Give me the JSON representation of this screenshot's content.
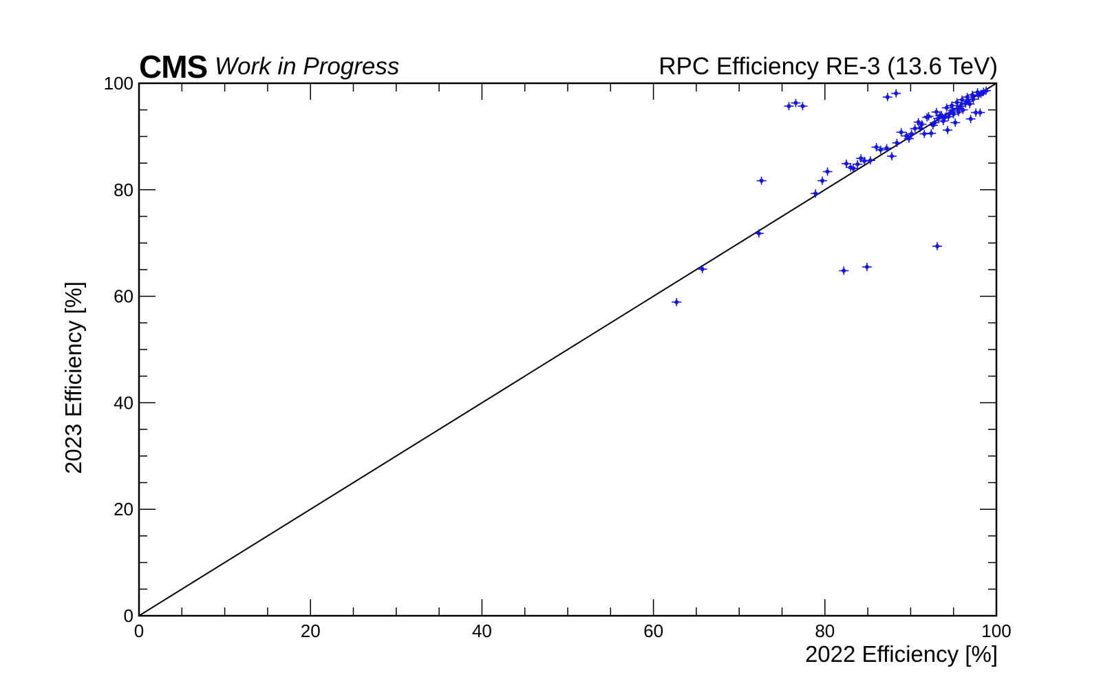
{
  "header": {
    "experiment": "CMS",
    "status": "Work in Progress",
    "title": "RPC Efficiency RE-3 (13.6 TeV)"
  },
  "chart_data": {
    "type": "scatter",
    "title": "RPC Efficiency RE-3 (13.6 TeV)",
    "xlabel": "2022 Efficiency [%]",
    "ylabel": "2023 Efficiency [%]",
    "xlim": [
      0,
      100
    ],
    "ylim": [
      0,
      100
    ],
    "x_ticks": [
      0,
      20,
      40,
      60,
      80,
      100
    ],
    "y_ticks": [
      0,
      20,
      40,
      60,
      80,
      100
    ],
    "grid": false,
    "reference_line": "y = x",
    "marker_color": "#1414e6",
    "error_bars": true,
    "points": [
      [
        62.7,
        58.9
      ],
      [
        65.7,
        65.1
      ],
      [
        72.3,
        71.8
      ],
      [
        72.6,
        81.7
      ],
      [
        78.9,
        79.3
      ],
      [
        79.7,
        81.7
      ],
      [
        80.3,
        83.4
      ],
      [
        82.2,
        64.8
      ],
      [
        84.9,
        65.5
      ],
      [
        93.1,
        69.4
      ],
      [
        75.8,
        95.7
      ],
      [
        76.6,
        96.3
      ],
      [
        77.4,
        95.7
      ],
      [
        87.3,
        97.4
      ],
      [
        88.3,
        98.1
      ],
      [
        82.5,
        84.9
      ],
      [
        83.0,
        84.2
      ],
      [
        83.3,
        84.0
      ],
      [
        83.8,
        84.8
      ],
      [
        84.2,
        85.9
      ],
      [
        84.6,
        85.4
      ],
      [
        85.3,
        85.5
      ],
      [
        86.0,
        88.0
      ],
      [
        86.5,
        87.5
      ],
      [
        87.2,
        87.8
      ],
      [
        87.8,
        86.3
      ],
      [
        88.4,
        88.8
      ],
      [
        88.9,
        90.8
      ],
      [
        89.5,
        90.1
      ],
      [
        89.8,
        89.6
      ],
      [
        90.1,
        90.5
      ],
      [
        90.5,
        91.5
      ],
      [
        90.9,
        92.7
      ],
      [
        91.3,
        92.3
      ],
      [
        91.6,
        90.5
      ],
      [
        92.1,
        93.8
      ],
      [
        92.4,
        90.6
      ],
      [
        92.8,
        92.6
      ],
      [
        93.2,
        93.4
      ],
      [
        93.6,
        94.0
      ],
      [
        94.0,
        93.6
      ],
      [
        94.3,
        91.2
      ],
      [
        94.6,
        94.4
      ],
      [
        94.9,
        94.9
      ],
      [
        95.2,
        92.6
      ],
      [
        95.5,
        95.3
      ],
      [
        95.8,
        95.7
      ],
      [
        96.1,
        95.0
      ],
      [
        96.4,
        96.2
      ],
      [
        96.7,
        96.6
      ],
      [
        97.0,
        93.3
      ],
      [
        97.3,
        97.0
      ],
      [
        97.6,
        94.5
      ],
      [
        97.9,
        97.7
      ],
      [
        98.2,
        98.0
      ],
      [
        98.5,
        98.4
      ],
      [
        98.8,
        98.6
      ],
      [
        93.0,
        94.6
      ],
      [
        93.4,
        93.9
      ],
      [
        94.2,
        95.4
      ],
      [
        94.8,
        95.8
      ],
      [
        95.4,
        96.4
      ],
      [
        96.0,
        96.9
      ],
      [
        96.6,
        97.4
      ],
      [
        97.2,
        97.8
      ],
      [
        97.8,
        98.3
      ],
      [
        98.1,
        94.5
      ],
      [
        95.0,
        94.2
      ],
      [
        94.4,
        93.7
      ],
      [
        93.8,
        92.9
      ],
      [
        92.6,
        92.1
      ],
      [
        91.9,
        93.6
      ],
      [
        91.1,
        91.6
      ],
      [
        96.9,
        96.1
      ],
      [
        95.6,
        94.6
      ]
    ]
  }
}
